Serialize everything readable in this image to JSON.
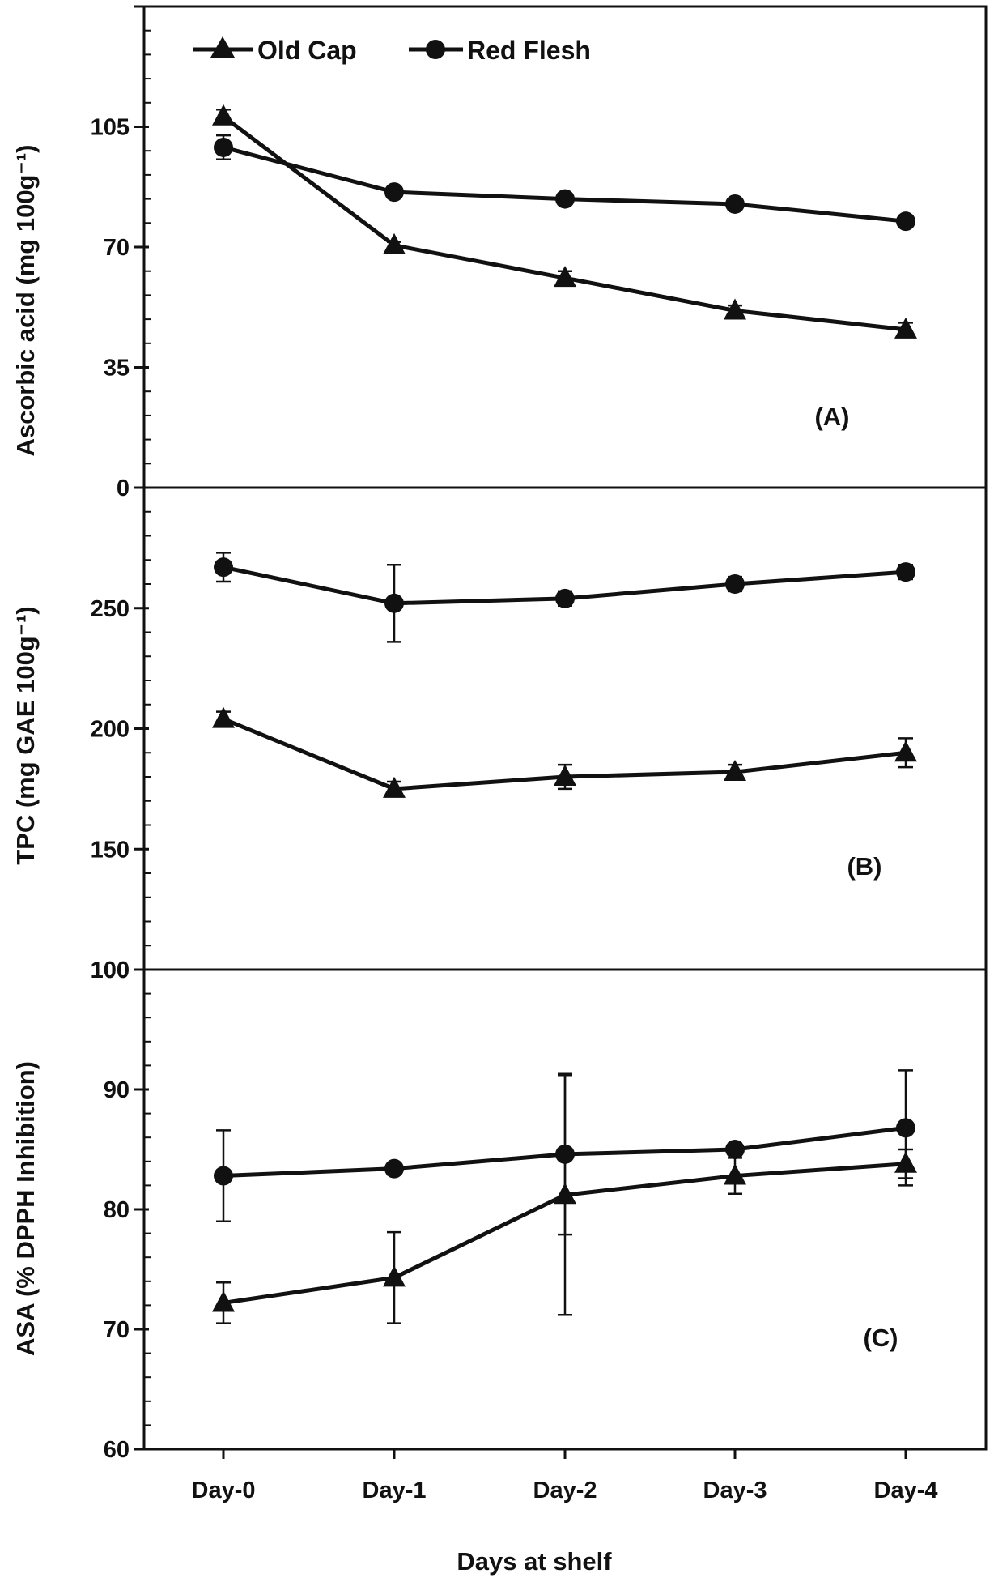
{
  "chart_data": [
    {
      "type": "line",
      "panel_label": "(A)",
      "ylabel": "Ascorbic acid (mg 100g⁻¹)",
      "categories": [
        "Day-0",
        "Day-1",
        "Day-2",
        "Day-3",
        "Day-4"
      ],
      "ylim": [
        0,
        140
      ],
      "yticks": [
        0,
        35,
        70,
        105
      ],
      "yticks_labels": [
        "0",
        "35",
        "70",
        "105"
      ],
      "series": [
        {
          "name": "Old Cap",
          "marker": "triangle",
          "values": [
            108,
            70.5,
            61,
            51.5,
            46
          ],
          "errors": [
            2,
            1,
            2,
            1.5,
            2
          ]
        },
        {
          "name": "Red Flesh",
          "marker": "circle",
          "values": [
            99,
            86,
            84,
            82.5,
            77.5
          ],
          "errors": [
            3.5,
            1,
            1,
            1,
            1
          ]
        }
      ]
    },
    {
      "type": "line",
      "panel_label": "(B)",
      "ylabel": "TPC (mg GAE 100g⁻¹)",
      "categories": [
        "Day-0",
        "Day-1",
        "Day-2",
        "Day-3",
        "Day-4"
      ],
      "ylim": [
        100,
        300
      ],
      "yticks": [
        100,
        150,
        200,
        250
      ],
      "yticks_labels": [
        "100",
        "150",
        "200",
        "250"
      ],
      "series": [
        {
          "name": "Old Cap",
          "marker": "triangle",
          "values": [
            204,
            175,
            180,
            182,
            190
          ],
          "errors": [
            3,
            3,
            5,
            3,
            6
          ]
        },
        {
          "name": "Red Flesh",
          "marker": "circle",
          "values": [
            267,
            252,
            254,
            260,
            265
          ],
          "errors": [
            6,
            16,
            3,
            3,
            3
          ]
        }
      ]
    },
    {
      "type": "line",
      "panel_label": "(C)",
      "xlabel": "Days at shelf",
      "ylabel": "ASA (% DPPH Inhibition)",
      "categories": [
        "Day-0",
        "Day-1",
        "Day-2",
        "Day-3",
        "Day-4"
      ],
      "ylim": [
        60,
        100
      ],
      "yticks": [
        60,
        70,
        80,
        90,
        100
      ],
      "yticks_labels": [
        "60",
        "70",
        "80",
        "90",
        "100"
      ],
      "series": [
        {
          "name": "Old Cap",
          "marker": "triangle",
          "values": [
            72.2,
            74.3,
            81.2,
            82.8,
            83.8
          ],
          "errors": [
            1.7,
            3.8,
            10,
            1.5,
            1.2
          ]
        },
        {
          "name": "Red Flesh",
          "marker": "circle",
          "values": [
            82.8,
            83.4,
            84.6,
            85,
            86.8
          ],
          "errors": [
            3.8,
            0.5,
            6.7,
            0.5,
            4.8
          ]
        }
      ]
    }
  ],
  "legend": {
    "placement": "top-left",
    "items": [
      {
        "label": "Old Cap",
        "marker": "triangle"
      },
      {
        "label": "Red Flesh",
        "marker": "circle"
      }
    ]
  },
  "colors": {
    "line": "#111111",
    "background": "#ffffff"
  }
}
